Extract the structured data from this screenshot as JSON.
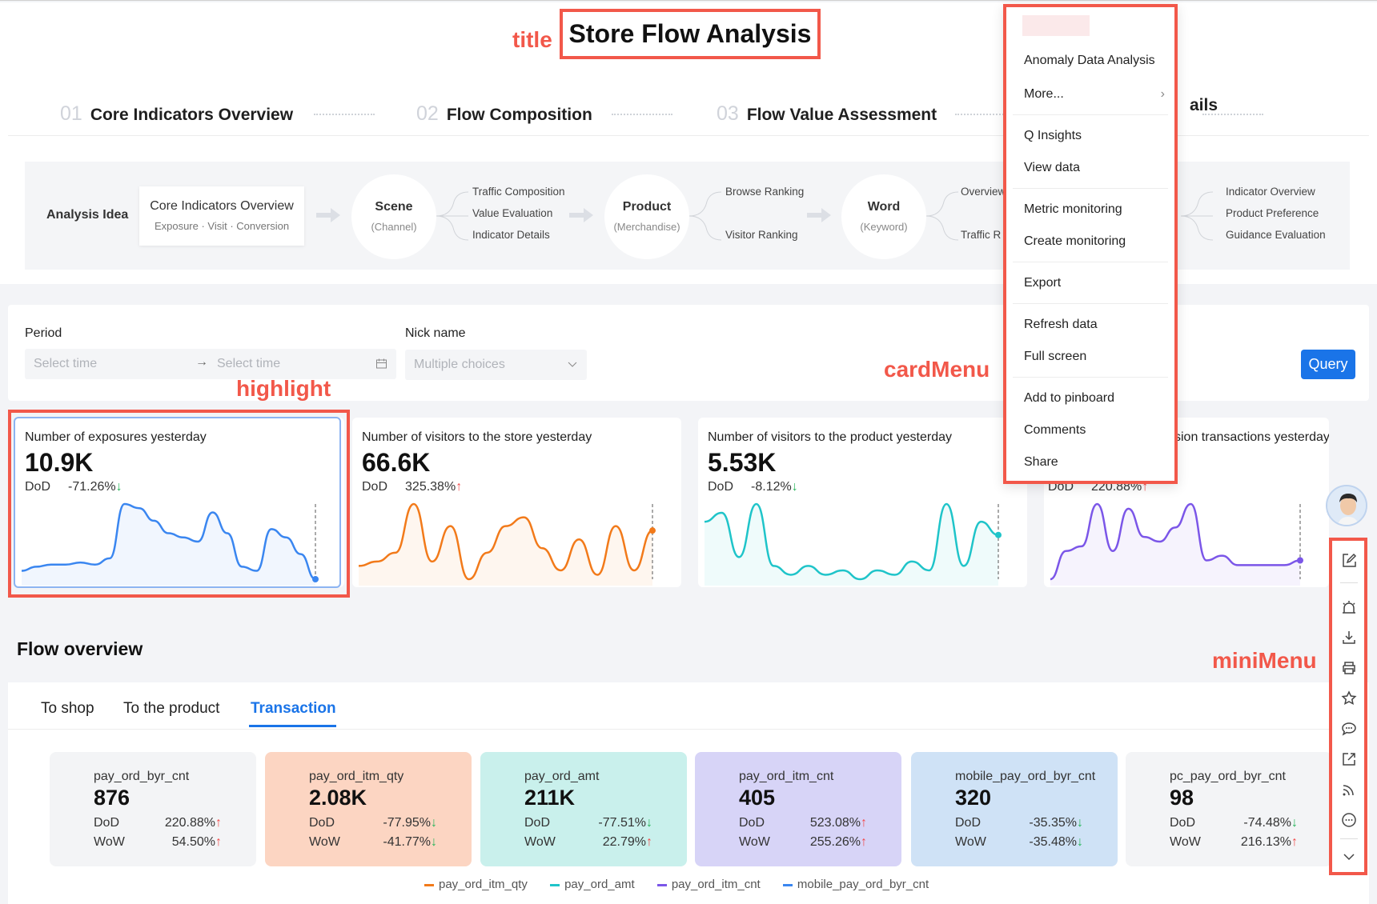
{
  "title": "Store Flow Analysis",
  "annotations": {
    "title": "title",
    "highlight": "highlight",
    "cardMenu": "cardMenu",
    "miniMenu": "miniMenu"
  },
  "steps": [
    {
      "num": "01",
      "label": "Core Indicators Overview"
    },
    {
      "num": "02",
      "label": "Flow Composition"
    },
    {
      "num": "03",
      "label": "Flow Value Assessment"
    }
  ],
  "steps_peek": "ails",
  "analysis_idea": {
    "label": "Analysis Idea",
    "core": {
      "title": "Core Indicators Overview",
      "subtitle": "Exposure · Visit · Conversion"
    },
    "nodes": [
      {
        "title": "Scene",
        "subtitle": "(Channel)",
        "branches": [
          "Traffic Composition",
          "Value Evaluation",
          "Indicator Details"
        ]
      },
      {
        "title": "Product",
        "subtitle": "(Merchandise)",
        "branches": [
          "Browse Ranking",
          "Visitor Ranking"
        ]
      },
      {
        "title": "Word",
        "subtitle": "(Keyword)",
        "branches": [
          "Overview",
          "Traffic R"
        ]
      }
    ],
    "tail_branches": [
      "Indicator Overview",
      "Product Preference",
      "Guidance Evaluation"
    ]
  },
  "filters": {
    "period_label": "Period",
    "start_placeholder": "Select time",
    "end_placeholder": "Select time",
    "nick_label": "Nick name",
    "nick_placeholder": "Multiple choices",
    "query_label": "Query"
  },
  "kpis": [
    {
      "label": "Number of exposures yesterday",
      "value": "10.9K",
      "dod_label": "DoD",
      "dod": "-71.26%",
      "dir": "down",
      "color": "#3a86f0",
      "series": [
        8,
        10,
        11,
        11,
        12,
        11,
        14,
        40,
        38,
        32,
        26,
        24,
        22,
        36,
        26,
        10,
        8,
        28,
        24,
        16,
        4
      ]
    },
    {
      "label": "Number of visitors to the store yesterday",
      "value": "66.6K",
      "dod_label": "DoD",
      "dod": "325.38%",
      "dir": "up",
      "color": "#f27a1a",
      "series": [
        12,
        14,
        18,
        40,
        14,
        30,
        6,
        18,
        30,
        34,
        20,
        10,
        24,
        8,
        30,
        10,
        28
      ]
    },
    {
      "label": "Number of visitors to the product yesterday",
      "value": "5.53K",
      "dod_label": "DoD",
      "dod": "-8.12%",
      "dir": "down",
      "color": "#1fc4c9",
      "series": [
        30,
        34,
        14,
        38,
        10,
        6,
        10,
        6,
        8,
        4,
        8,
        6,
        12,
        8,
        38,
        10,
        30,
        24
      ]
    },
    {
      "label": "sion transactions yesterday",
      "value": "",
      "dod_label": "DoD",
      "dod": "220.88%",
      "dir": "up",
      "color": "#7b56e8",
      "series": [
        4,
        16,
        18,
        36,
        16,
        34,
        22,
        20,
        26,
        36,
        12,
        14,
        10,
        10,
        10,
        10,
        12
      ]
    }
  ],
  "flow": {
    "title": "Flow overview",
    "tabs": [
      "To shop",
      "To the product",
      "Transaction"
    ],
    "active_tab": "Transaction",
    "metrics": [
      {
        "name": "pay_ord_byr_cnt",
        "value": "876",
        "dod": "220.88%",
        "dod_dir": "up",
        "wow": "54.50%",
        "wow_dir": "up",
        "bg": "#f3f4f6"
      },
      {
        "name": "pay_ord_itm_qty",
        "value": "2.08K",
        "dod": "-77.95%",
        "dod_dir": "down",
        "wow": "-41.77%",
        "wow_dir": "down",
        "bg": "#fcd5c2"
      },
      {
        "name": "pay_ord_amt",
        "value": "211K",
        "dod": "-77.51%",
        "dod_dir": "down",
        "wow": "22.79%",
        "wow_dir": "up",
        "bg": "#c9f0ec"
      },
      {
        "name": "pay_ord_itm_cnt",
        "value": "405",
        "dod": "523.08%",
        "dod_dir": "up",
        "wow": "255.26%",
        "wow_dir": "up",
        "bg": "#d7d4f7"
      },
      {
        "name": "mobile_pay_ord_byr_cnt",
        "value": "320",
        "dod": "-35.35%",
        "dod_dir": "down",
        "wow": "-35.48%",
        "wow_dir": "down",
        "bg": "#cfe2f6"
      },
      {
        "name": "pc_pay_ord_byr_cnt",
        "value": "98",
        "dod": "-74.48%",
        "dod_dir": "down",
        "wow": "216.13%",
        "wow_dir": "up",
        "bg": "#f3f4f6"
      }
    ],
    "dod_label": "DoD",
    "wow_label": "WoW",
    "legend": [
      {
        "name": "pay_ord_itm_qty",
        "color": "#f27a1a"
      },
      {
        "name": "pay_ord_amt",
        "color": "#1fc4c9"
      },
      {
        "name": "pay_ord_itm_cnt",
        "color": "#7b56e8"
      },
      {
        "name": "mobile_pay_ord_byr_cnt",
        "color": "#3a86f0"
      }
    ]
  },
  "card_menu": {
    "items": [
      [
        "Anomaly Data Analysis",
        "More..."
      ],
      [
        "Q Insights",
        "View data"
      ],
      [
        "Metric monitoring",
        "Create monitoring"
      ],
      [
        "Export"
      ],
      [
        "Refresh data",
        "Full screen"
      ],
      [
        "Add to pinboard",
        "Comments",
        "Share"
      ]
    ]
  },
  "mini_menu": {
    "icons": [
      "edit-icon",
      "alarm-icon",
      "download-icon",
      "print-icon",
      "star-icon",
      "comment-icon",
      "share-icon",
      "subscribe-icon",
      "more-icon",
      "chevron-down-icon"
    ]
  }
}
